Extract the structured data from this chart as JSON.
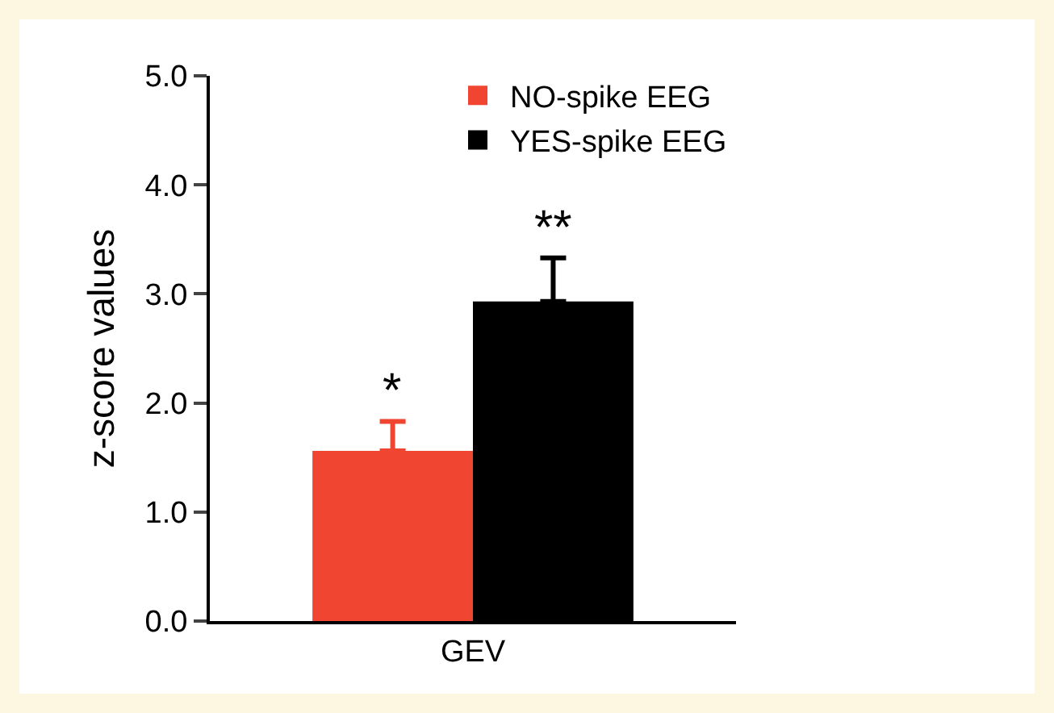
{
  "chart_data": {
    "type": "bar",
    "categories": [
      "GEV"
    ],
    "ylabel": "z-score values",
    "ylim": [
      0,
      5
    ],
    "yticks": [
      {
        "value": 0,
        "label": "0.0"
      },
      {
        "value": 1,
        "label": "1.0"
      },
      {
        "value": 2,
        "label": "2.0"
      },
      {
        "value": 3,
        "label": "3.0"
      },
      {
        "value": 4,
        "label": "4.0"
      },
      {
        "value": 5,
        "label": "5.0"
      }
    ],
    "grid": false,
    "legend": "top right",
    "series": [
      {
        "name": "NO-spike EEG",
        "color": "#f04530",
        "values": [
          1.56
        ],
        "errors": [
          [
            1.56,
            1.83
          ]
        ],
        "value_labels": [
          "*"
        ]
      },
      {
        "name": "YES-spike EEG",
        "color": "#000000",
        "values": [
          2.93
        ],
        "errors": [
          [
            2.93,
            3.33
          ]
        ],
        "value_labels": [
          "**"
        ]
      }
    ]
  }
}
